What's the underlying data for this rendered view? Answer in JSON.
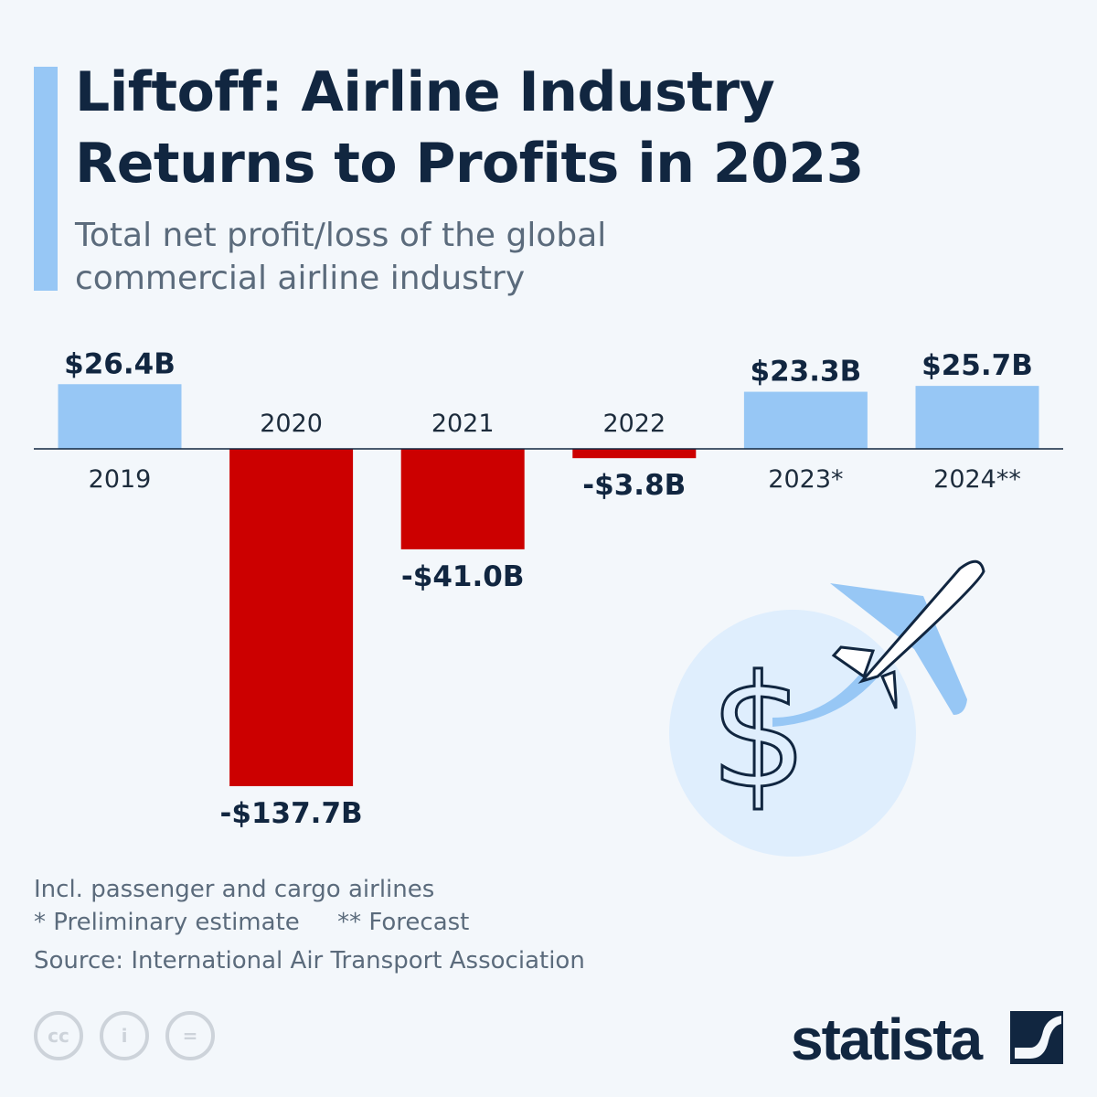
{
  "title": "Liftoff: Airline Industry Returns to Profits in 2023",
  "title_lines": [
    "Liftoff: Airline Industry",
    "Returns to Profits in 2023"
  ],
  "subtitle_lines": [
    "Total net profit/loss of the global",
    "commercial airline industry"
  ],
  "chart_data": {
    "type": "bar",
    "categories": [
      "2019",
      "2020",
      "2021",
      "2022",
      "2023*",
      "2024**"
    ],
    "values": [
      26.4,
      -137.7,
      -41.0,
      -3.8,
      23.3,
      25.7
    ],
    "value_labels": [
      "$26.4B",
      "-$137.7B",
      "-$41.0B",
      "-$3.8B",
      "$23.3B",
      "$25.7B"
    ],
    "unit": "billion U.S. dollars",
    "grid": false,
    "colors": {
      "positive": "#97c7f5",
      "negative": "#cc0000"
    }
  },
  "notes": [
    "Incl. passenger and cargo airlines",
    "* Preliminary estimate     ** Forecast",
    "Source: International Air Transport Association"
  ],
  "license_icons": [
    "cc-icon",
    "attribution-icon",
    "no-derivatives-icon"
  ],
  "brand": "statista",
  "colors": {
    "title": "#112640",
    "accent": "#97c7f5"
  }
}
